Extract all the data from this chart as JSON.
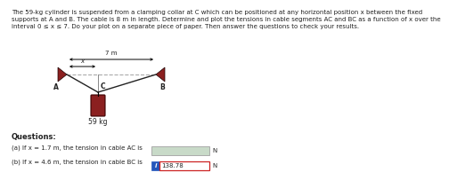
{
  "title_line1": "The 59-kg cylinder is suspended from a clamping collar at C which can be positioned at any horizontal position x between the fixed",
  "title_line2": "supports at A and B. The cable is 8 m in length. Determine and plot the tensions in cable segments AC and BC as a function of x over the",
  "title_line3": "interval 0 ≤ x ≤ 7. Do your plot on a separate piece of paper. Then answer the questions to check your results.",
  "span_label": "7 m",
  "x_label": "x",
  "mass_label": "59 kg",
  "label_A": "A",
  "label_B": "B",
  "label_C": "C",
  "question_title": "Questions:",
  "q_a_text": "(a) If x = 1.7 m, the tension in cable AC is",
  "q_b_text": "(b) If x = 4.6 m, the tension in cable BC is",
  "q_b_value": "138.78",
  "unit": "N",
  "bg_color": "#ffffff",
  "support_color": "#8B2020",
  "cable_color": "#222222",
  "dashed_color": "#aaaaaa",
  "cylinder_color_face": "#8B2020",
  "cylinder_color_edge": "#3a0000",
  "text_color": "#222222",
  "box_a_fill": "#c8dac8",
  "box_a_edge": "#aaaaaa",
  "box_b_fill": "#ffffff",
  "box_b_border": "#cc2222",
  "info_btn_color": "#2255bb",
  "dim_line_color": "#000000",
  "vertical_line_color": "#888888"
}
